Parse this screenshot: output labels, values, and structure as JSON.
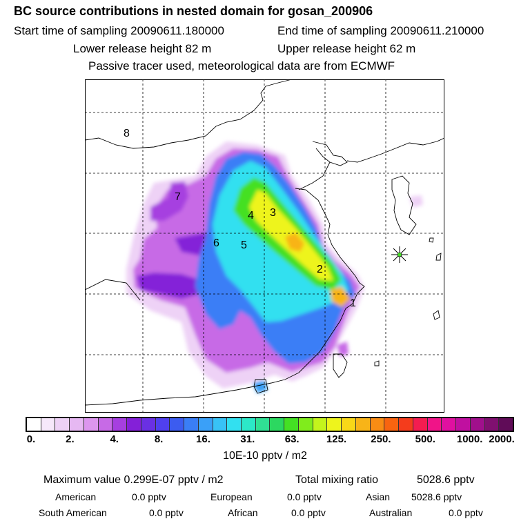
{
  "header": {
    "title": "BC  source contributions in nested domain for gosan_200906",
    "start_label": "Start time of sampling 20090611.180000",
    "end_label": "End time of sampling 20090611.210000",
    "lower_label": "Lower release height   82 m",
    "upper_label": "Upper release height   62 m",
    "note": "Passive tracer used, meteorological data are from ECMWF"
  },
  "map": {
    "region_labels": [
      "1",
      "2",
      "3",
      "4",
      "5",
      "6",
      "7",
      "8"
    ],
    "receptor_icon": "star-marker-icon"
  },
  "colorbar": {
    "colors": [
      "#ffffff",
      "#f6e8fa",
      "#eed2f6",
      "#e6b8f2",
      "#dc96ee",
      "#c76ae6",
      "#a63fe0",
      "#8420d8",
      "#6a30e4",
      "#5040ee",
      "#3c5cf0",
      "#3a7ef6",
      "#3aa0f8",
      "#38c2f6",
      "#32e0f0",
      "#2ce8c8",
      "#30e094",
      "#2cd860",
      "#44e024",
      "#80ec1c",
      "#c4f41c",
      "#eef41c",
      "#f8d818",
      "#f8b418",
      "#f88c14",
      "#f86410",
      "#f43c1c",
      "#f41c50",
      "#f01488",
      "#e010a0",
      "#c010a0",
      "#a0108c",
      "#801070",
      "#600c58"
    ],
    "tick_labels": [
      "0.",
      "2.",
      "4.",
      "8.",
      "16.",
      "31.",
      "63.",
      "125.",
      "250.",
      "500.",
      "1000.",
      "2000."
    ],
    "units": "10E-10 pptv / m2"
  },
  "stats": {
    "max_label": "Maximum value  0.299E-07 pptv / m2",
    "total_label": "Total mixing ratio",
    "total_value": "5028.6 pptv",
    "rows": [
      [
        {
          "name": "American",
          "value": "0.0 pptv"
        },
        {
          "name": "European",
          "value": "0.0 pptv"
        },
        {
          "name": "Asian",
          "value": "5028.6 pptv"
        }
      ],
      [
        {
          "name": "South American",
          "value": "0.0 pptv"
        },
        {
          "name": "African",
          "value": "0.0 pptv"
        },
        {
          "name": "Australian",
          "value": "0.0 pptv"
        }
      ]
    ]
  }
}
